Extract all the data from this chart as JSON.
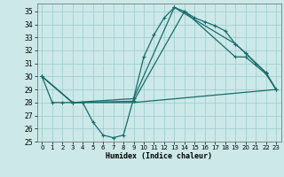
{
  "title": "",
  "xlabel": "Humidex (Indice chaleur)",
  "bg_color": "#cce8e8",
  "grid_color": "#99cccc",
  "line_color": "#1a6b6b",
  "xlim": [
    -0.5,
    23.5
  ],
  "ylim": [
    25,
    35.6
  ],
  "yticks": [
    25,
    26,
    27,
    28,
    29,
    30,
    31,
    32,
    33,
    34,
    35
  ],
  "xticks": [
    0,
    1,
    2,
    3,
    4,
    5,
    6,
    7,
    8,
    9,
    10,
    11,
    12,
    13,
    14,
    15,
    16,
    17,
    18,
    19,
    20,
    21,
    22,
    23
  ],
  "lines": [
    {
      "x": [
        0,
        1,
        2,
        3,
        4,
        5,
        6,
        7,
        8,
        9,
        10,
        11,
        12,
        13,
        14,
        15,
        16,
        17,
        18,
        19,
        20,
        21,
        22,
        23
      ],
      "y": [
        30,
        28,
        28,
        28,
        28,
        26.5,
        25.5,
        25.3,
        25.5,
        28.3,
        31.5,
        33.2,
        34.5,
        35.3,
        35.0,
        34.5,
        34.2,
        33.9,
        33.5,
        32.5,
        31.8,
        31.0,
        30.3,
        29.0
      ],
      "marker": true
    },
    {
      "x": [
        0,
        3,
        9,
        13,
        19,
        20,
        22,
        23
      ],
      "y": [
        30,
        28,
        28.3,
        35.3,
        32.5,
        31.8,
        30.3,
        29.0
      ],
      "marker": true
    },
    {
      "x": [
        0,
        3,
        9,
        14,
        19,
        20,
        22,
        23
      ],
      "y": [
        30,
        28,
        28.1,
        35.0,
        31.5,
        31.5,
        30.2,
        29.0
      ],
      "marker": true
    },
    {
      "x": [
        0,
        3,
        9,
        23
      ],
      "y": [
        30,
        28,
        28.0,
        29.0
      ],
      "marker": false
    }
  ]
}
